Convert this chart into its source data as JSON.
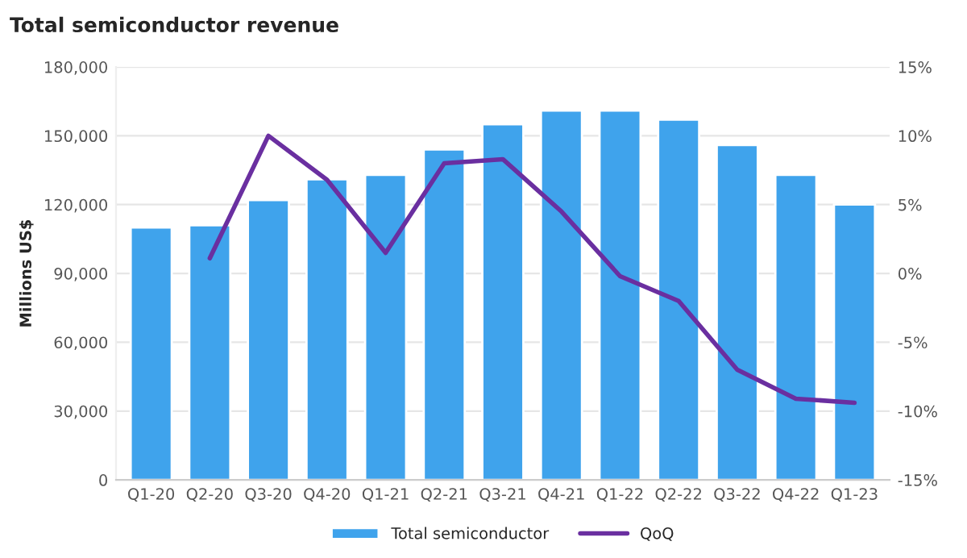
{
  "chart_data": {
    "type": "bar",
    "title": "Total semiconductor revenue",
    "ylabel": "Millions US$",
    "categories": [
      "Q1-20",
      "Q2-20",
      "Q3-20",
      "Q4-20",
      "Q1-21",
      "Q2-21",
      "Q3-21",
      "Q4-21",
      "Q1-22",
      "Q2-22",
      "Q3-22",
      "Q4-22",
      "Q1-23"
    ],
    "series": [
      {
        "name": "Total semiconductor",
        "color": "#3fa3ec",
        "values": [
          110000,
          111000,
          122000,
          131000,
          133000,
          144000,
          155000,
          161000,
          161000,
          157000,
          146000,
          133000,
          120000
        ]
      },
      {
        "name": "QoQ",
        "type": "line",
        "axis": "y2",
        "color": "#6a2fa0",
        "values": [
          null,
          1.1,
          10,
          6.8,
          1.5,
          8,
          8.3,
          4.5,
          -0.2,
          -2,
          -7,
          -9.1,
          -9.4
        ]
      }
    ],
    "ylim": [
      0,
      180000
    ],
    "yticks": [
      {
        "value": 0,
        "label": "0"
      },
      {
        "value": 30000,
        "label": "30,000"
      },
      {
        "value": 60000,
        "label": "60,000"
      },
      {
        "value": 90000,
        "label": "90,000"
      },
      {
        "value": 120000,
        "label": "120,000"
      },
      {
        "value": 150000,
        "label": "150,000"
      },
      {
        "value": 180000,
        "label": "180,000"
      }
    ],
    "y2lim": [
      -15,
      15
    ],
    "y2ticks": [
      {
        "value": -15,
        "label": "-15%"
      },
      {
        "value": -10,
        "label": "-10%"
      },
      {
        "value": -5,
        "label": "-5%"
      },
      {
        "value": 0,
        "label": "0%"
      },
      {
        "value": 5,
        "label": "5%"
      },
      {
        "value": 10,
        "label": "10%"
      },
      {
        "value": 15,
        "label": "15%"
      }
    ],
    "grid": "y",
    "legend": "bottom"
  }
}
